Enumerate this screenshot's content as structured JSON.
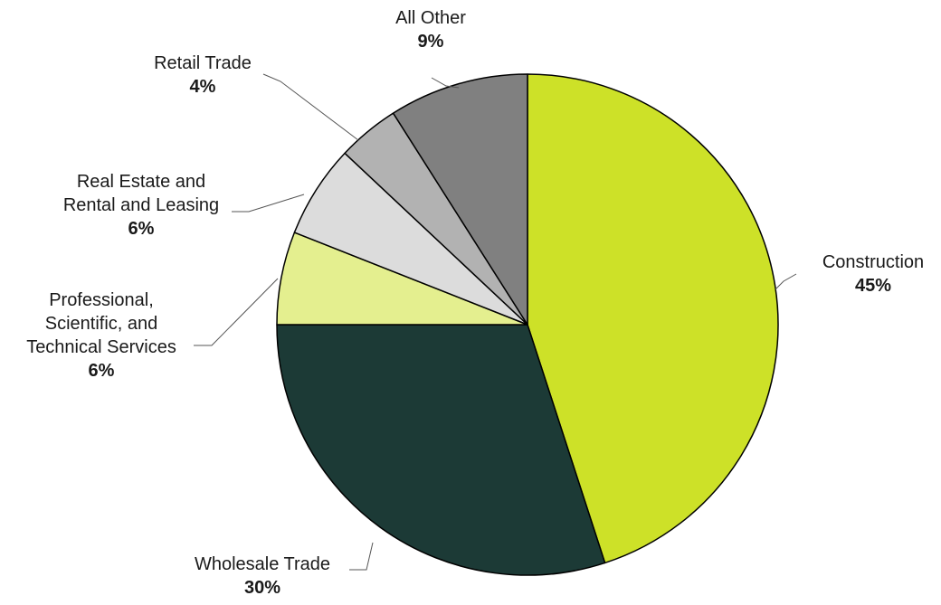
{
  "chart_data": {
    "type": "pie",
    "title": "",
    "legend": "none",
    "start_angle_deg": 0,
    "direction": "clockwise",
    "slices": [
      {
        "name": "Construction",
        "label_lines": [
          "Construction"
        ],
        "value": 45,
        "value_label": "45%",
        "color": "#cde128"
      },
      {
        "name": "Wholesale Trade",
        "label_lines": [
          "Wholesale Trade"
        ],
        "value": 30,
        "value_label": "30%",
        "color": "#1c3a36"
      },
      {
        "name": "Professional, Scientific, and Technical Services",
        "label_lines": [
          "Professional,",
          "Scientific, and",
          "Technical Services"
        ],
        "value": 6,
        "value_label": "6%",
        "color": "#e4ef8f"
      },
      {
        "name": "Real Estate and Rental and Leasing",
        "label_lines": [
          "Real Estate and",
          "Rental and Leasing"
        ],
        "value": 6,
        "value_label": "6%",
        "color": "#dcdcdc"
      },
      {
        "name": "Retail Trade",
        "label_lines": [
          "Retail Trade"
        ],
        "value": 4,
        "value_label": "4%",
        "color": "#b2b2b2"
      },
      {
        "name": "All Other",
        "label_lines": [
          "All Other"
        ],
        "value": 9,
        "value_label": "9%",
        "color": "#808080"
      }
    ]
  }
}
